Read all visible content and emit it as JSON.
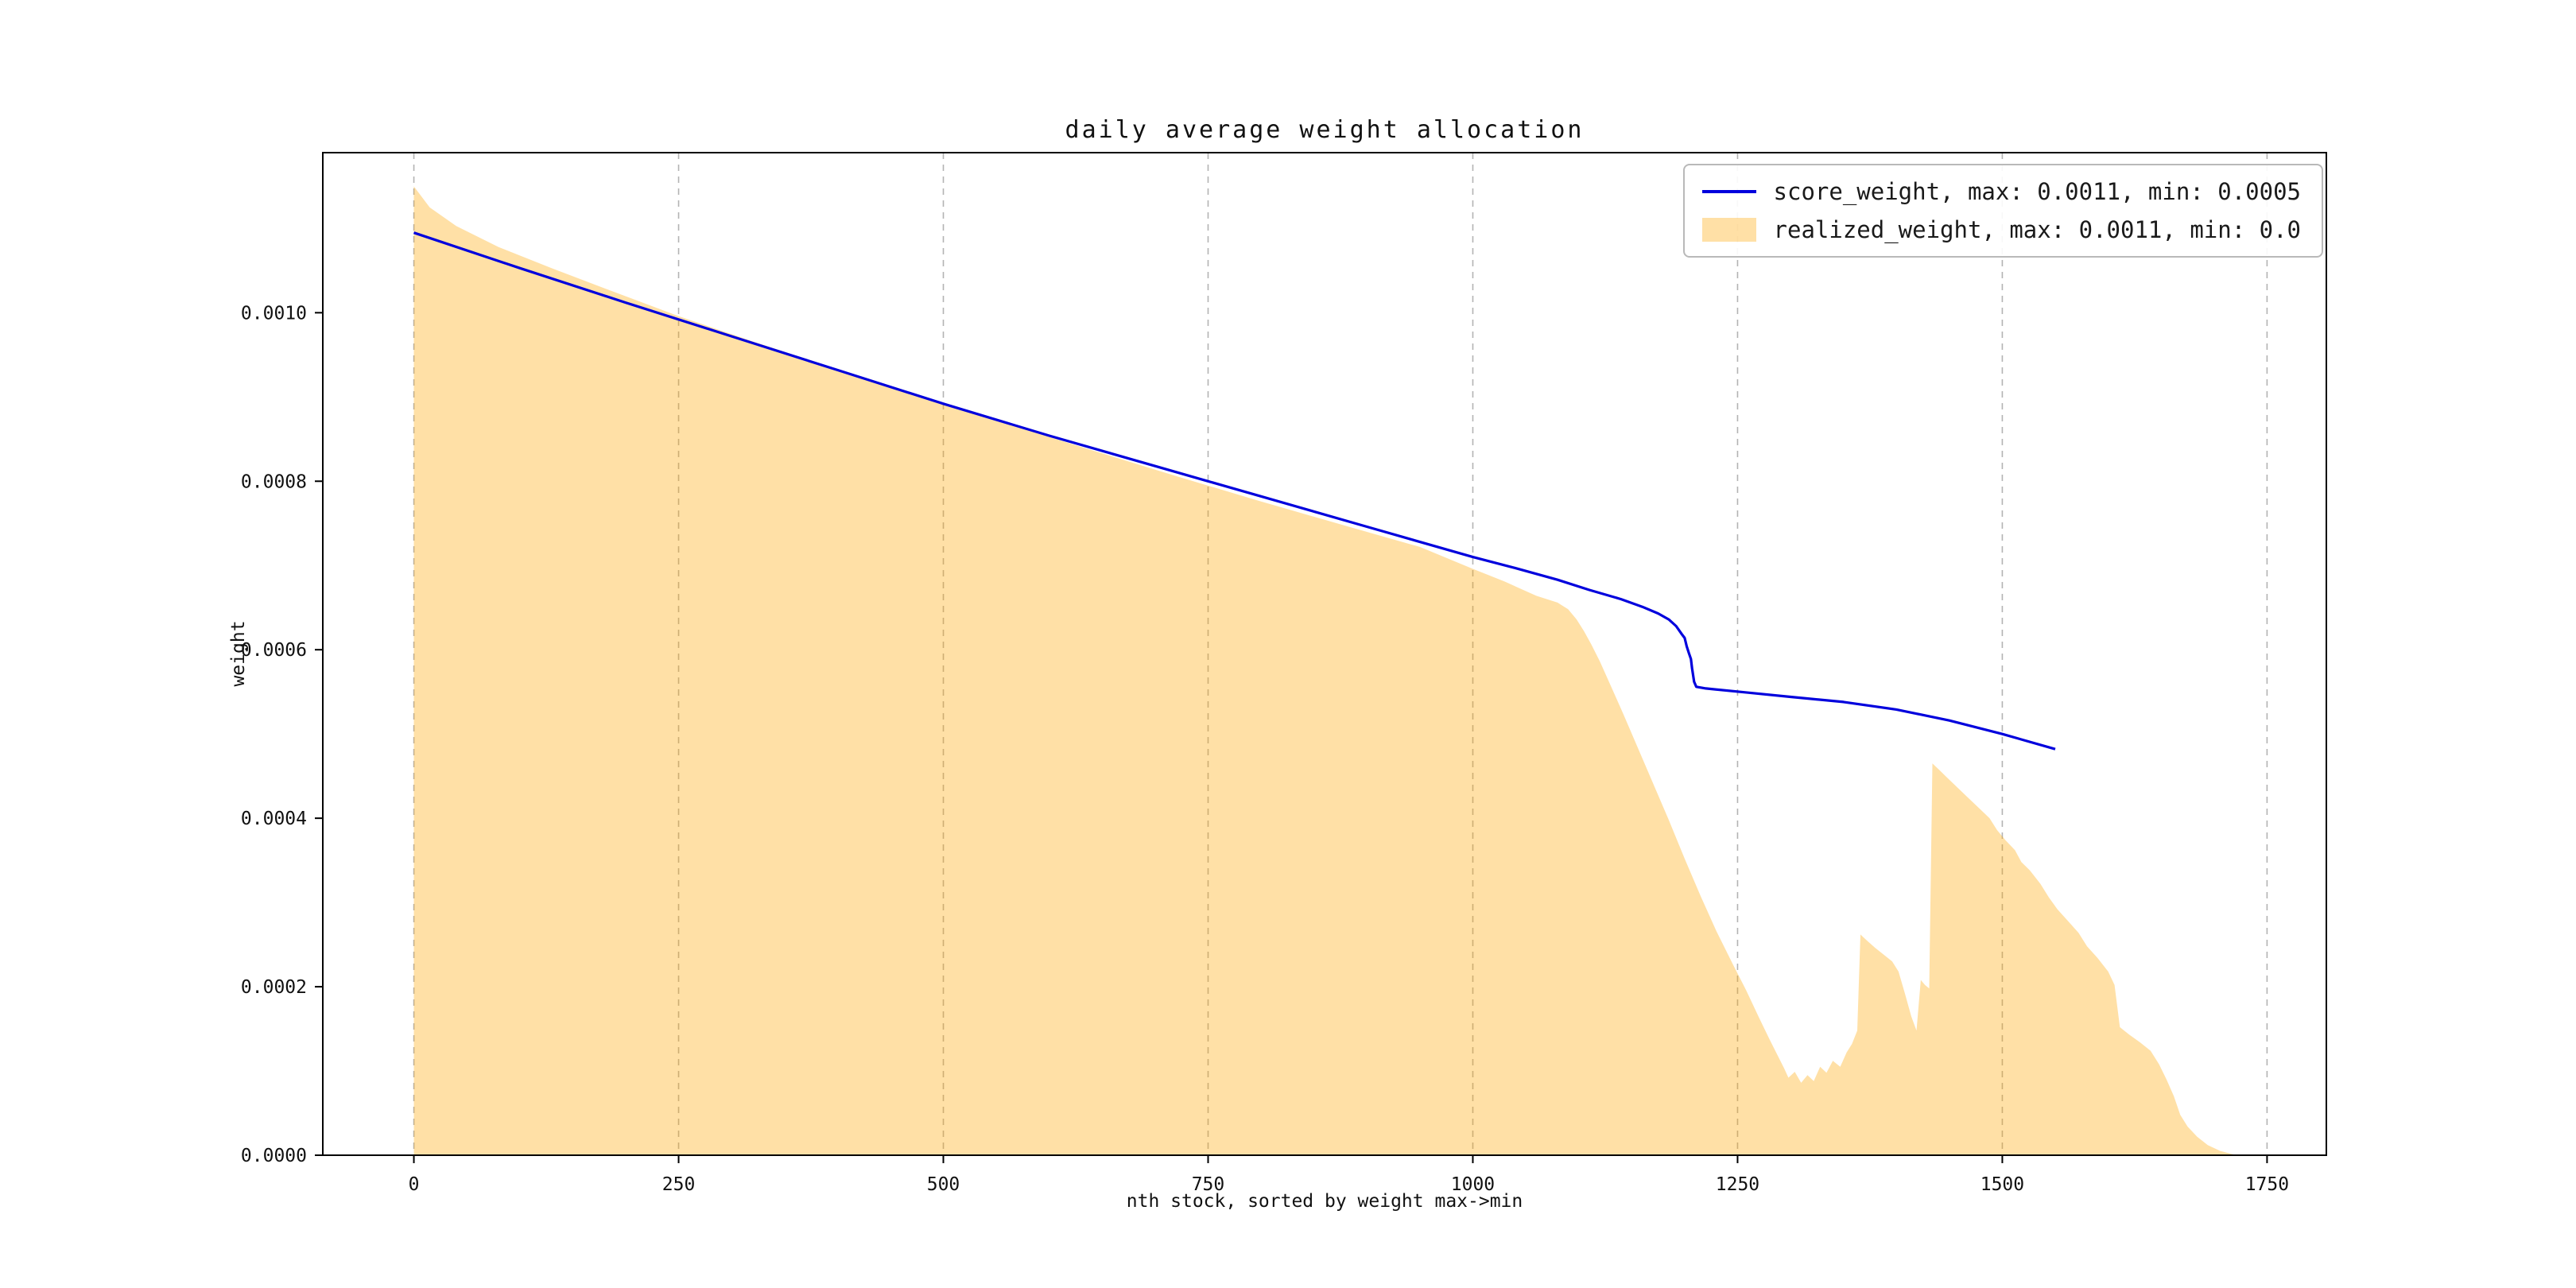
{
  "figure": {
    "background": "#ffffff"
  },
  "chart_data": {
    "type": "line",
    "title": "daily average weight allocation",
    "xlabel": "nth stock, sorted by weight max->min",
    "ylabel": "weight",
    "xlim": [
      -86,
      1806
    ],
    "ylim": [
      0,
      0.00119
    ],
    "xticks": [
      0,
      250,
      500,
      750,
      1000,
      1250,
      1500,
      1750
    ],
    "yticks": [
      0.0,
      0.0002,
      0.0004,
      0.0006,
      0.0008,
      0.001
    ],
    "grid": {
      "vertical_dashed": true,
      "horizontal": false,
      "color": "#b3b3b3"
    },
    "frame_color": "#000000",
    "legend_position": "upper right",
    "series": [
      {
        "name": "score_weight",
        "label": "score_weight, max: 0.0011, min: 0.0005",
        "type": "line",
        "color": "#0000dd",
        "max": 0.0011,
        "min": 0.0005,
        "points": [
          [
            0,
            0.001095
          ],
          [
            100,
            0.001053
          ],
          [
            200,
            0.001012
          ],
          [
            300,
            0.000972
          ],
          [
            400,
            0.000932
          ],
          [
            500,
            0.000892
          ],
          [
            600,
            0.000854
          ],
          [
            700,
            0.000818
          ],
          [
            750,
            0.0008
          ],
          [
            800,
            0.000782
          ],
          [
            900,
            0.000746
          ],
          [
            1000,
            0.00071
          ],
          [
            1040,
            0.000697
          ],
          [
            1080,
            0.000683
          ],
          [
            1110,
            0.000671
          ],
          [
            1140,
            0.00066
          ],
          [
            1160,
            0.000651
          ],
          [
            1175,
            0.000643
          ],
          [
            1185,
            0.000636
          ],
          [
            1192,
            0.000628
          ],
          [
            1197,
            0.000619
          ],
          [
            1200,
            0.000614
          ],
          [
            1202,
            0.000604
          ],
          [
            1204,
            0.000596
          ],
          [
            1206,
            0.000589
          ],
          [
            1207,
            0.000578
          ],
          [
            1209,
            0.000562
          ],
          [
            1211,
            0.000556
          ],
          [
            1220,
            0.000554
          ],
          [
            1260,
            0.000549
          ],
          [
            1300,
            0.000544
          ],
          [
            1350,
            0.000538
          ],
          [
            1400,
            0.000529
          ],
          [
            1450,
            0.000516
          ],
          [
            1500,
            0.0005
          ],
          [
            1550,
            0.000482
          ]
        ]
      },
      {
        "name": "realized_weight",
        "label": "realized_weight, max: 0.0011, min: 0.0",
        "type": "area",
        "color": "#ffa500",
        "alpha": 0.35,
        "max": 0.0011,
        "min": 0.0,
        "points": [
          [
            0,
            0.00115
          ],
          [
            15,
            0.001125
          ],
          [
            40,
            0.001103
          ],
          [
            80,
            0.001078
          ],
          [
            130,
            0.001053
          ],
          [
            180,
            0.001029
          ],
          [
            250,
            0.000996
          ],
          [
            320,
            0.000966
          ],
          [
            400,
            0.000933
          ],
          [
            480,
            0.0009
          ],
          [
            560,
            0.000868
          ],
          [
            640,
            0.000837
          ],
          [
            720,
            0.000806
          ],
          [
            800,
            0.000776
          ],
          [
            880,
            0.000747
          ],
          [
            950,
            0.000722
          ],
          [
            1000,
            0.000696
          ],
          [
            1030,
            0.000681
          ],
          [
            1060,
            0.000664
          ],
          [
            1080,
            0.000656
          ],
          [
            1090,
            0.000648
          ],
          [
            1098,
            0.000636
          ],
          [
            1105,
            0.000622
          ],
          [
            1112,
            0.000606
          ],
          [
            1120,
            0.000586
          ],
          [
            1130,
            0.000558
          ],
          [
            1142,
            0.000524
          ],
          [
            1155,
            0.000486
          ],
          [
            1170,
            0.000442
          ],
          [
            1185,
            0.000398
          ],
          [
            1200,
            0.000352
          ],
          [
            1215,
            0.000308
          ],
          [
            1230,
            0.000266
          ],
          [
            1245,
            0.000228
          ],
          [
            1258,
            0.000196
          ],
          [
            1270,
            0.000164
          ],
          [
            1280,
            0.000138
          ],
          [
            1288,
            0.000118
          ],
          [
            1294,
            0.000103
          ],
          [
            1298,
            9.2e-05
          ],
          [
            1304,
            9.9e-05
          ],
          [
            1310,
            8.6e-05
          ],
          [
            1316,
            9.5e-05
          ],
          [
            1322,
            8.8e-05
          ],
          [
            1328,
            0.000105
          ],
          [
            1334,
            9.8e-05
          ],
          [
            1340,
            0.000112
          ],
          [
            1347,
            0.000105
          ],
          [
            1353,
            0.000122
          ],
          [
            1358,
            0.000132
          ],
          [
            1363,
            0.000148
          ],
          [
            1366,
            0.000262
          ],
          [
            1372,
            0.000255
          ],
          [
            1380,
            0.000246
          ],
          [
            1388,
            0.000238
          ],
          [
            1396,
            0.00023
          ],
          [
            1402,
            0.000218
          ],
          [
            1408,
            0.000192
          ],
          [
            1414,
            0.000165
          ],
          [
            1419,
            0.000148
          ],
          [
            1423,
            0.000208
          ],
          [
            1427,
            0.000202
          ],
          [
            1431,
            0.000198
          ],
          [
            1434,
            0.000465
          ],
          [
            1440,
            0.000458
          ],
          [
            1448,
            0.000448
          ],
          [
            1458,
            0.000436
          ],
          [
            1468,
            0.000424
          ],
          [
            1478,
            0.000412
          ],
          [
            1488,
            0.0004
          ],
          [
            1495,
            0.000386
          ],
          [
            1503,
            0.000374
          ],
          [
            1512,
            0.000362
          ],
          [
            1518,
            0.000348
          ],
          [
            1526,
            0.000338
          ],
          [
            1536,
            0.000322
          ],
          [
            1544,
            0.000306
          ],
          [
            1552,
            0.000292
          ],
          [
            1562,
            0.000278
          ],
          [
            1572,
            0.000264
          ],
          [
            1580,
            0.000248
          ],
          [
            1590,
            0.000234
          ],
          [
            1600,
            0.000218
          ],
          [
            1606,
            0.000202
          ],
          [
            1611,
            0.000152
          ],
          [
            1620,
            0.000143
          ],
          [
            1630,
            0.000134
          ],
          [
            1640,
            0.000124
          ],
          [
            1648,
            0.000108
          ],
          [
            1655,
            9e-05
          ],
          [
            1662,
            7e-05
          ],
          [
            1668,
            4.8e-05
          ],
          [
            1675,
            3.4e-05
          ],
          [
            1684,
            2.2e-05
          ],
          [
            1694,
            1.2e-05
          ],
          [
            1706,
            5e-06
          ],
          [
            1718,
            1e-06
          ],
          [
            1722,
            0
          ]
        ]
      }
    ]
  }
}
